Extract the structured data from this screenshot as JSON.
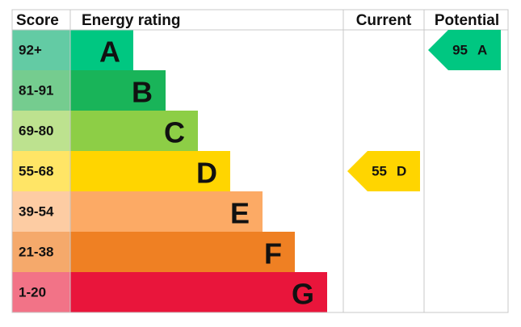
{
  "chart_data": {
    "type": "epc",
    "headers": [
      "Score",
      "Energy rating",
      "Current",
      "Potential"
    ],
    "bands": [
      {
        "score": "92+",
        "letter": "A",
        "color": "#00c781",
        "score_color": "#63cba4"
      },
      {
        "score": "81-91",
        "letter": "B",
        "color": "#19b459",
        "score_color": "#75cc8f"
      },
      {
        "score": "69-80",
        "letter": "C",
        "color": "#8dce46",
        "score_color": "#bde28f"
      },
      {
        "score": "55-68",
        "letter": "D",
        "color": "#ffd500",
        "score_color": "#ffe566"
      },
      {
        "score": "39-54",
        "letter": "E",
        "color": "#fcaa65",
        "score_color": "#fdcca3"
      },
      {
        "score": "21-38",
        "letter": "F",
        "color": "#ef8023",
        "score_color": "#f5a96b"
      },
      {
        "score": "1-20",
        "letter": "G",
        "color": "#e9153b",
        "score_color": "#f27387"
      }
    ],
    "current": {
      "value": 55,
      "letter": "D"
    },
    "potential": {
      "value": 95,
      "letter": "A"
    }
  }
}
